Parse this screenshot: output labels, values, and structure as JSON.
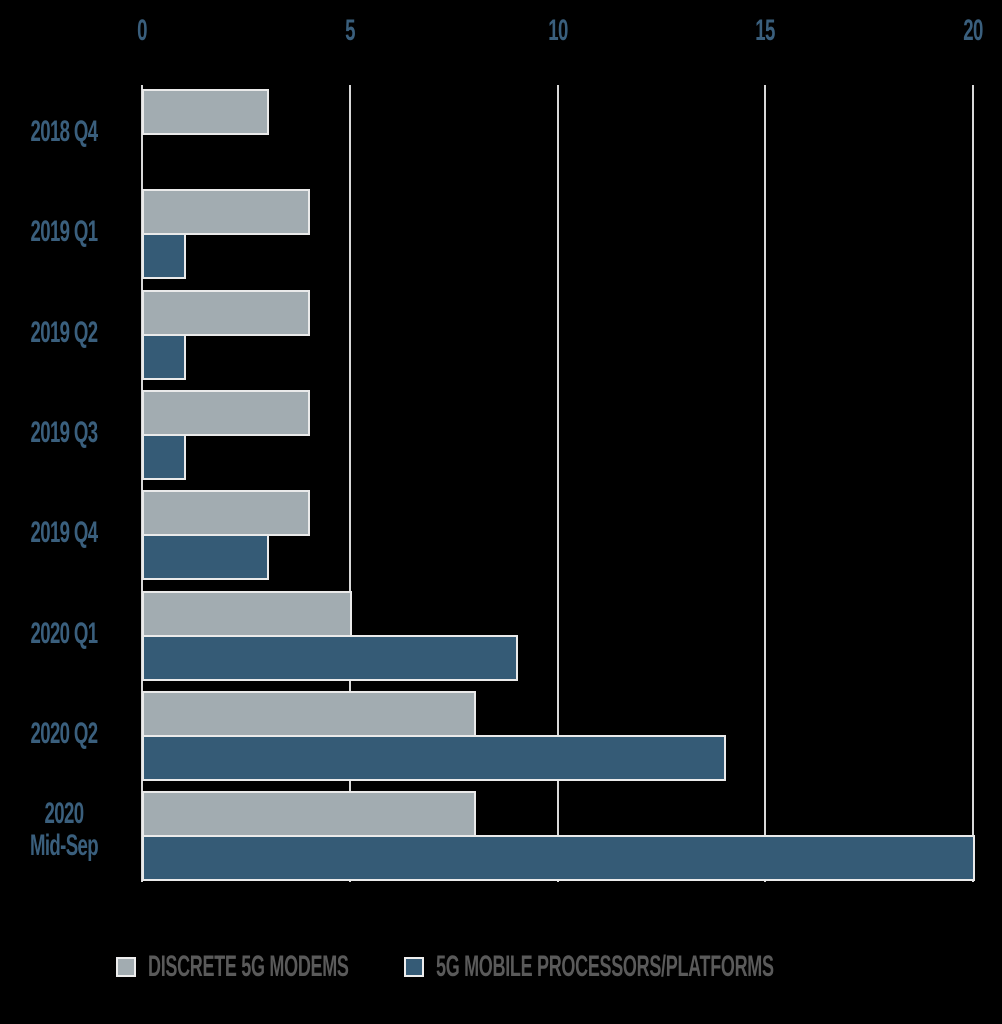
{
  "chart_data": {
    "type": "bar",
    "orientation": "horizontal",
    "title": "",
    "xlabel": "",
    "ylabel": "",
    "xlim": [
      0,
      20
    ],
    "x_ticks": [
      "0",
      "5",
      "10",
      "15",
      "20"
    ],
    "grid": true,
    "legend_position": "bottom",
    "categories": [
      "2018 Q4",
      "2019 Q1",
      "2019 Q2",
      "2019 Q3",
      "2019 Q4",
      "2020 Q1",
      "2020 Q2",
      "2020 Mid-Sep"
    ],
    "category_lines": [
      [
        "2018 Q4"
      ],
      [
        "2019 Q1"
      ],
      [
        "2019 Q2"
      ],
      [
        "2019 Q3"
      ],
      [
        "2019 Q4"
      ],
      [
        "2020 Q1"
      ],
      [
        "2020 Q2"
      ],
      [
        "2020",
        "Mid-Sep"
      ]
    ],
    "series": [
      {
        "name": "DISCRETE 5G MODEMS",
        "color": "#a2acb1",
        "values": [
          3,
          4,
          4,
          4,
          4,
          5,
          8,
          8
        ]
      },
      {
        "name": "5G MOBILE PROCESSORS/PLATFORMS",
        "color": "#355b76",
        "values": [
          0,
          1,
          1,
          1,
          3,
          9,
          14,
          20
        ]
      }
    ]
  },
  "legend": {
    "items": [
      {
        "label": "DISCRETE 5G MODEMS",
        "color": "#a2acb1"
      },
      {
        "label": "5G MOBILE PROCESSORS/PLATFORMS",
        "color": "#355b76"
      }
    ]
  }
}
